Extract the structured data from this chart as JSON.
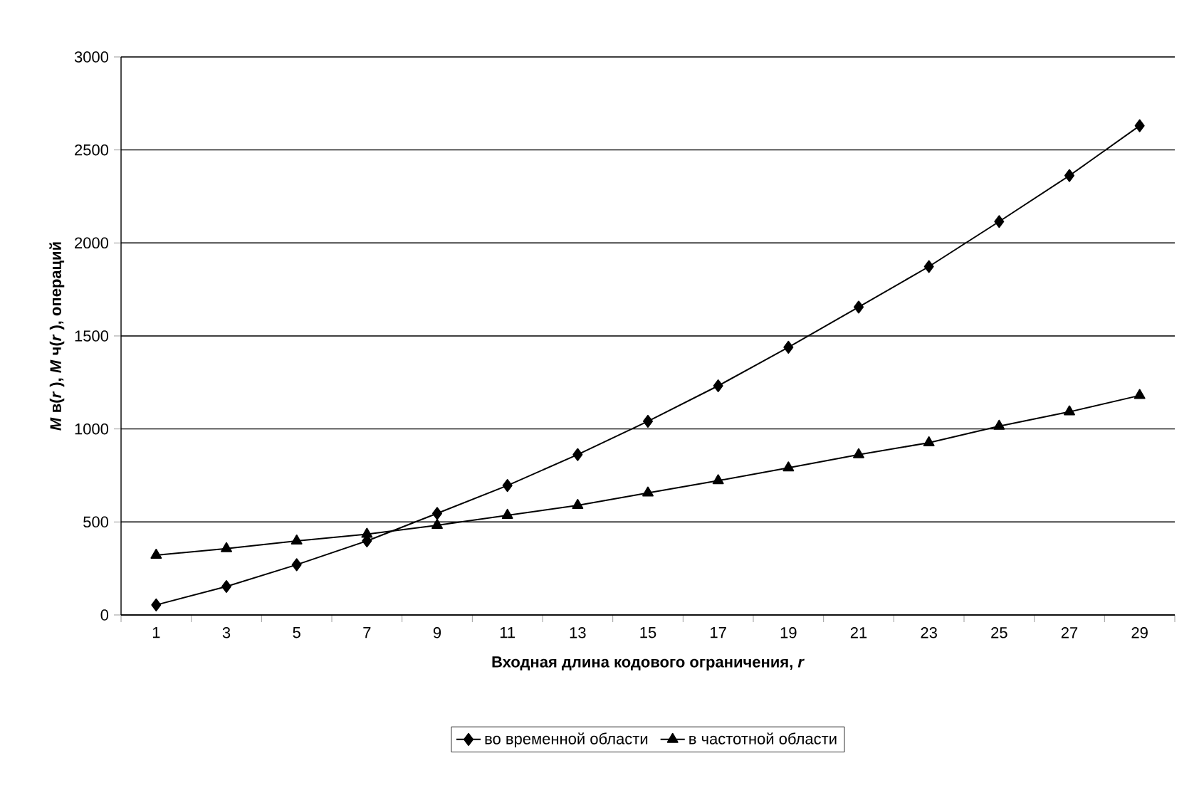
{
  "chart_data": {
    "type": "line",
    "xlabel": "Входная длина кодового ограничения, *r*",
    "ylabel": "*M* в(*r* ), *M* ч(*r* ), операций",
    "categories": [
      "1",
      "3",
      "5",
      "7",
      "9",
      "11",
      "13",
      "15",
      "17",
      "19",
      "21",
      "23",
      "25",
      "27",
      "29"
    ],
    "series": [
      {
        "name": "во временной области",
        "color": "#000000",
        "marker": "diamond",
        "values": [
          54,
          153,
          270,
          398,
          546,
          696,
          862,
          1041,
          1232,
          1439,
          1655,
          1873,
          2115,
          2362,
          2630
        ]
      },
      {
        "name": "в частотной области",
        "color": "#000000",
        "marker": "triangle",
        "values": [
          321,
          357,
          398,
          434,
          482,
          536,
          589,
          656,
          722,
          791,
          862,
          926,
          1015,
          1092,
          1180
        ]
      }
    ],
    "ylim": [
      0,
      3000
    ],
    "yticks": [
      0,
      500,
      1000,
      1500,
      2000,
      2500,
      3000
    ],
    "grid": "y",
    "legend": "bottom",
    "line_style": "solid"
  }
}
